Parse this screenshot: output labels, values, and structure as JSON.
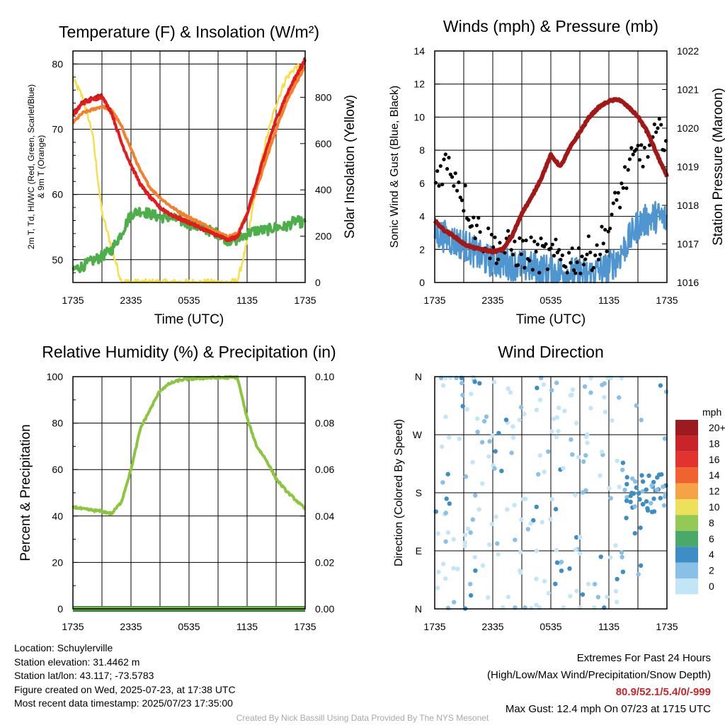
{
  "chart_data": [
    {
      "type": "line",
      "title": "Temperature (F) & Insolation (W/m²)",
      "xlabel": "Time (UTC)",
      "ylabel": "2m T, Td, HI/WC (Red, Green, Scarlet/Blue) & 9m T (Orange)",
      "ylabel_right": "Solar Insolation (Yellow)",
      "x_ticks": [
        "1735",
        "2335",
        "0535",
        "1135",
        "1735"
      ],
      "ylim": [
        46.5,
        82
      ],
      "y_ticks": [
        50,
        60,
        70,
        80
      ],
      "ylim_right": [
        0,
        1000
      ],
      "y_ticks_right": [
        0,
        200,
        400,
        600,
        800
      ],
      "x_hours": [
        0,
        1,
        2,
        3,
        4,
        5,
        6,
        7,
        8,
        9,
        10,
        11,
        12,
        13,
        14,
        15,
        16,
        17,
        18,
        19,
        20,
        21,
        22,
        23,
        24
      ],
      "series": [
        {
          "name": "2m T",
          "color": "#e41a1c",
          "axis": "left",
          "values": [
            72.0,
            74.0,
            74.5,
            75.0,
            72.5,
            68.0,
            64.5,
            61.5,
            59.5,
            58.0,
            57.0,
            56.3,
            55.7,
            55.0,
            54.3,
            53.7,
            53.0,
            53.5,
            57.0,
            62.0,
            67.0,
            71.5,
            75.0,
            78.0,
            80.5
          ]
        },
        {
          "name": "HI/WC",
          "color": "#b71c1c",
          "axis": "left",
          "values": [
            72.5,
            74.2,
            74.8,
            75.2,
            72.5,
            68.0,
            64.5,
            61.5,
            59.5,
            58.0,
            57.0,
            56.3,
            55.7,
            55.0,
            54.3,
            53.7,
            53.0,
            53.5,
            57.0,
            62.0,
            67.0,
            71.5,
            75.0,
            78.0,
            80.9
          ]
        },
        {
          "name": "9m T",
          "color": "#f4802a",
          "axis": "left",
          "values": [
            71.0,
            72.5,
            73.0,
            73.5,
            73.0,
            70.5,
            67.0,
            63.5,
            61.0,
            59.5,
            58.3,
            57.3,
            56.5,
            55.8,
            55.0,
            54.2,
            53.5,
            54.0,
            57.0,
            61.0,
            65.5,
            70.0,
            74.0,
            77.0,
            79.5
          ]
        },
        {
          "name": "Td",
          "color": "#4daf4a",
          "axis": "left",
          "values": [
            48.5,
            49.0,
            49.8,
            50.5,
            51.5,
            54.0,
            57.0,
            57.5,
            57.0,
            56.5,
            56.5,
            56.0,
            55.5,
            55.0,
            54.5,
            54.0,
            53.0,
            53.0,
            54.0,
            54.5,
            54.5,
            55.0,
            55.0,
            56.0,
            55.5
          ]
        },
        {
          "name": "Solar Insolation",
          "color": "#f7df4a",
          "axis": "right",
          "values": [
            880,
            800,
            650,
            300,
            150,
            5,
            0,
            0,
            0,
            0,
            0,
            0,
            0,
            0,
            0,
            0,
            0,
            5,
            170,
            430,
            620,
            770,
            880,
            930,
            920
          ]
        }
      ]
    },
    {
      "type": "line",
      "title": "Winds (mph) & Pressure (mb)",
      "xlabel": "Time (UTC)",
      "ylabel": "Sonic Wind & Gust (Blue, Black)",
      "ylabel_right": "Station Pressure (Maroon)",
      "x_ticks": [
        "1735",
        "2335",
        "0535",
        "1135",
        "1735"
      ],
      "ylim": [
        0,
        14
      ],
      "y_ticks": [
        0,
        2,
        4,
        6,
        8,
        10,
        12,
        14
      ],
      "ylim_right": [
        1016,
        1022
      ],
      "y_ticks_right": [
        1016,
        1017,
        1018,
        1019,
        1020,
        1021,
        1022
      ],
      "x_hours": [
        0,
        1,
        2,
        3,
        4,
        5,
        6,
        7,
        8,
        9,
        10,
        11,
        12,
        13,
        14,
        15,
        16,
        17,
        18,
        19,
        20,
        21,
        22,
        23,
        24
      ],
      "series": [
        {
          "name": "Sonic Wind",
          "color": "#4f95d0",
          "axis": "left",
          "values": [
            3.0,
            2.8,
            2.5,
            2.3,
            1.9,
            1.4,
            1.3,
            1.2,
            1.1,
            1.0,
            0.9,
            0.8,
            0.7,
            0.6,
            0.6,
            0.5,
            0.5,
            0.7,
            0.9,
            1.5,
            2.5,
            3.5,
            3.8,
            4.0,
            3.8
          ]
        },
        {
          "name": "Gust",
          "color": "#000000",
          "axis": "left",
          "values": [
            6.0,
            7.0,
            6.5,
            5.0,
            3.5,
            2.5,
            2.0,
            1.9,
            1.8,
            1.6,
            1.5,
            1.4,
            1.3,
            1.3,
            1.2,
            1.3,
            1.5,
            1.9,
            3.0,
            5.0,
            6.5,
            7.5,
            8.0,
            8.5,
            9.0
          ]
        },
        {
          "name": "Station Pressure",
          "color": "#a31717",
          "axis": "right",
          "values": [
            1017.6,
            1017.35,
            1017.2,
            1017.0,
            1016.9,
            1016.85,
            1016.8,
            1016.85,
            1017.2,
            1017.8,
            1018.2,
            1018.7,
            1019.3,
            1019.0,
            1019.5,
            1019.9,
            1020.3,
            1020.55,
            1020.7,
            1020.75,
            1020.55,
            1020.3,
            1019.9,
            1019.3,
            1018.75
          ]
        }
      ]
    },
    {
      "type": "line",
      "title": "Relative Humidity (%) & Precipitation (in)",
      "xlabel": "",
      "ylabel": "Percent & Precipitation",
      "x_ticks": [
        "1735",
        "2335",
        "0535",
        "1135",
        "1735"
      ],
      "ylim": [
        0,
        100
      ],
      "y_ticks": [
        0,
        20,
        40,
        60,
        80,
        100
      ],
      "ylim_right": [
        0,
        0.1
      ],
      "y_ticks_right": [
        "0.00",
        "0.02",
        "0.04",
        "0.06",
        "0.08",
        "0.10"
      ],
      "x_hours": [
        0,
        1,
        2,
        3,
        4,
        5,
        6,
        7,
        8,
        9,
        10,
        11,
        12,
        13,
        14,
        15,
        16,
        17,
        18,
        19,
        20,
        21,
        22,
        23,
        24
      ],
      "series": [
        {
          "name": "Relative Humidity",
          "color": "#8cc63f",
          "axis": "left",
          "values": [
            44,
            43,
            42.5,
            42,
            41,
            46,
            60,
            78,
            86,
            94,
            97,
            98.5,
            99,
            99.3,
            99.5,
            99.5,
            99.6,
            99.7,
            82,
            70,
            64,
            56,
            51,
            47,
            43
          ]
        },
        {
          "name": "Precipitation",
          "color": "#2e7d32",
          "axis": "right",
          "values": [
            0,
            0,
            0,
            0,
            0,
            0,
            0,
            0,
            0,
            0,
            0,
            0,
            0,
            0,
            0,
            0,
            0,
            0,
            0,
            0,
            0,
            0,
            0,
            0,
            0
          ]
        }
      ]
    },
    {
      "type": "scatter",
      "title": "Wind Direction",
      "xlabel": "",
      "ylabel": "Direction (Colored By Speed)",
      "x_ticks": [
        "1735",
        "2335",
        "0535",
        "1135",
        "1735"
      ],
      "y_ticks": [
        "N",
        "E",
        "S",
        "W",
        "N"
      ],
      "ylim": [
        0,
        360
      ],
      "colorbar": {
        "title": "mph",
        "labels": [
          "20+",
          "18",
          "16",
          "14",
          "12",
          "10",
          "8",
          "6",
          "4",
          "2",
          "0"
        ],
        "colors": [
          "#9b1b1f",
          "#c8242a",
          "#e2332f",
          "#f0622f",
          "#f6a348",
          "#ede05a",
          "#93c954",
          "#4aa868",
          "#3f8dc7",
          "#89c0e6",
          "#c3e6f7"
        ]
      }
    }
  ],
  "info": {
    "location": "Location: Schuylerville",
    "elevation": "Station elevation: 31.4462 m",
    "latlon": "Station lat/lon: 43.117; -73.5783",
    "created": "Figure created on Wed, 2025-07-23, at 17:38 UTC",
    "recent": "Most recent data timestamp: 2025/07/23 17:35:00"
  },
  "extremes": {
    "title": "Extremes For Past 24 Hours",
    "subtitle": "(High/Low/Max Wind/Precipitation/Snow Depth)",
    "values": "80.9/52.1/5.4/0/-999",
    "gust": "Max Gust: 12.4 mph On 07/23 at 1715 UTC"
  },
  "credit": "Created By Nick Bassill Using Data Provided By The NYS Mesonet"
}
